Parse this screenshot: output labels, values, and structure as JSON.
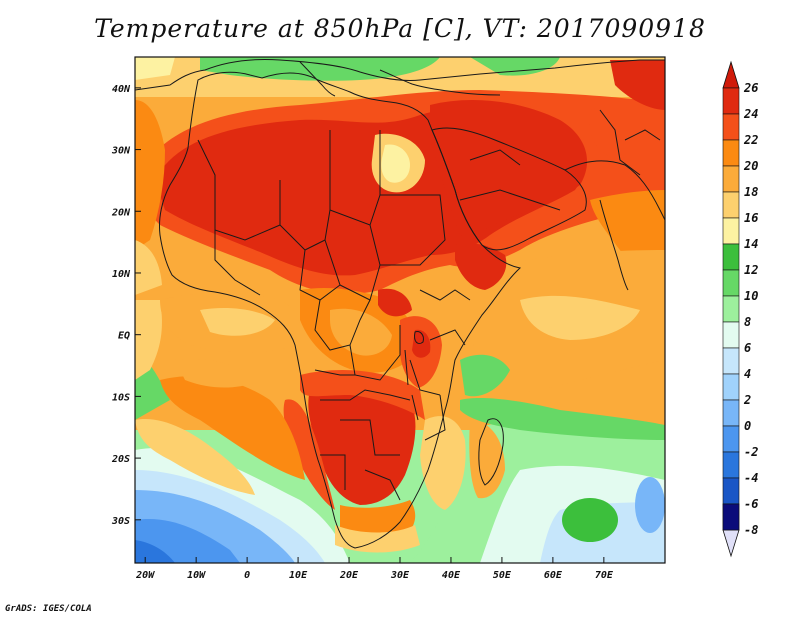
{
  "title": "Temperature at 850hPa [C], VT: 2017090918",
  "credit": "GrADS: IGES/COLA",
  "map": {
    "lon_range": [
      -22,
      82
    ],
    "lat_range": [
      -37,
      45
    ],
    "x_ticks": [
      "20W",
      "10W",
      "0",
      "10E",
      "20E",
      "30E",
      "40E",
      "50E",
      "60E",
      "70E"
    ],
    "y_ticks": [
      "40N",
      "30N",
      "20N",
      "10N",
      "EQ",
      "10S",
      "20S",
      "30S"
    ]
  },
  "colorbar": {
    "labels": [
      "26",
      "24",
      "22",
      "20",
      "18",
      "16",
      "14",
      "12",
      "10",
      "8",
      "6",
      "4",
      "2",
      "0",
      "-2",
      "-4",
      "-6",
      "-8"
    ],
    "colors": [
      "#e02a10",
      "#f4501a",
      "#fb8a12",
      "#fbab3a",
      "#fdd06e",
      "#fdf2a2",
      "#3cbf3c",
      "#66d866",
      "#9df09d",
      "#e3fbf0",
      "#c6e6fb",
      "#a0d2fb",
      "#78b6f8",
      "#4c96ef",
      "#2a76dd",
      "#1a56c6",
      "#0d36a4",
      "#0b0c7a"
    ],
    "over_color": "#d01a0a",
    "under_color": "#e0e0f8"
  }
}
